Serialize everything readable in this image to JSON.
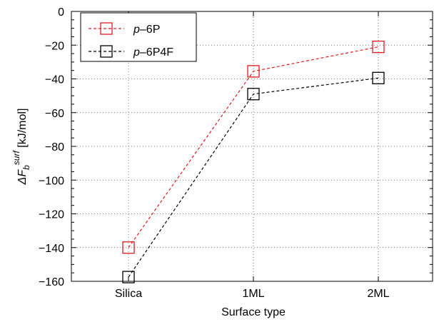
{
  "chart_data": {
    "type": "line",
    "categories": [
      "Silica",
      "1ML",
      "2ML"
    ],
    "xlabel": "Surface type",
    "ylabel": {
      "prefix": "ΔF",
      "subscript": "b",
      "superscript": "surf",
      "unit": " [kJ/mol]"
    },
    "ylim": [
      -160,
      0
    ],
    "yticks": [
      0,
      -20,
      -40,
      -60,
      -80,
      -100,
      -120,
      -140,
      -160
    ],
    "grid": true,
    "legend_position": "top-left",
    "series": [
      {
        "name": "p–6P",
        "name_italic": "p",
        "name_rest": "–6P",
        "color": "#e41a1c",
        "values": [
          -140,
          -35.5,
          -21
        ]
      },
      {
        "name": "p–6P4F",
        "name_italic": "p",
        "name_rest": "–6P4F",
        "color": "#000000",
        "values": [
          -157.5,
          -49,
          -39.5
        ]
      }
    ]
  }
}
